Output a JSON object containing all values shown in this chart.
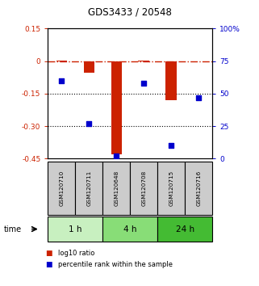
{
  "title": "GDS3433 / 20548",
  "samples": [
    "GSM120710",
    "GSM120711",
    "GSM120648",
    "GSM120708",
    "GSM120715",
    "GSM120716"
  ],
  "log10_ratio": [
    0.002,
    -0.055,
    -0.43,
    0.003,
    -0.18,
    -0.002
  ],
  "percentile": [
    60,
    27,
    2,
    58,
    10,
    47
  ],
  "ylim_left": [
    -0.45,
    0.15
  ],
  "ylim_right": [
    0,
    100
  ],
  "yticks_left": [
    0.15,
    0.0,
    -0.15,
    -0.3,
    -0.45
  ],
  "yticks_right": [
    100,
    75,
    50,
    25,
    0
  ],
  "ytick_labels_left": [
    "0.15",
    "0",
    "-0.15",
    "-0.30",
    "-0.45"
  ],
  "ytick_labels_right": [
    "100%",
    "75",
    "50",
    "25",
    "0"
  ],
  "hlines": [
    -0.15,
    -0.3
  ],
  "dashed_hline": 0.0,
  "bar_color": "#cc2200",
  "scatter_color": "#0000cc",
  "bar_width": 0.4,
  "time_groups": [
    {
      "label": "1 h",
      "start": 0,
      "end": 2,
      "color": "#c8f0c0"
    },
    {
      "label": "4 h",
      "start": 2,
      "end": 4,
      "color": "#88dd77"
    },
    {
      "label": "24 h",
      "start": 4,
      "end": 6,
      "color": "#44bb33"
    }
  ],
  "time_label": "time",
  "legend_bar_label": "log10 ratio",
  "legend_scatter_label": "percentile rank within the sample",
  "left_axis_color": "#cc2200",
  "right_axis_color": "#0000cc",
  "bg_color": "#ffffff"
}
